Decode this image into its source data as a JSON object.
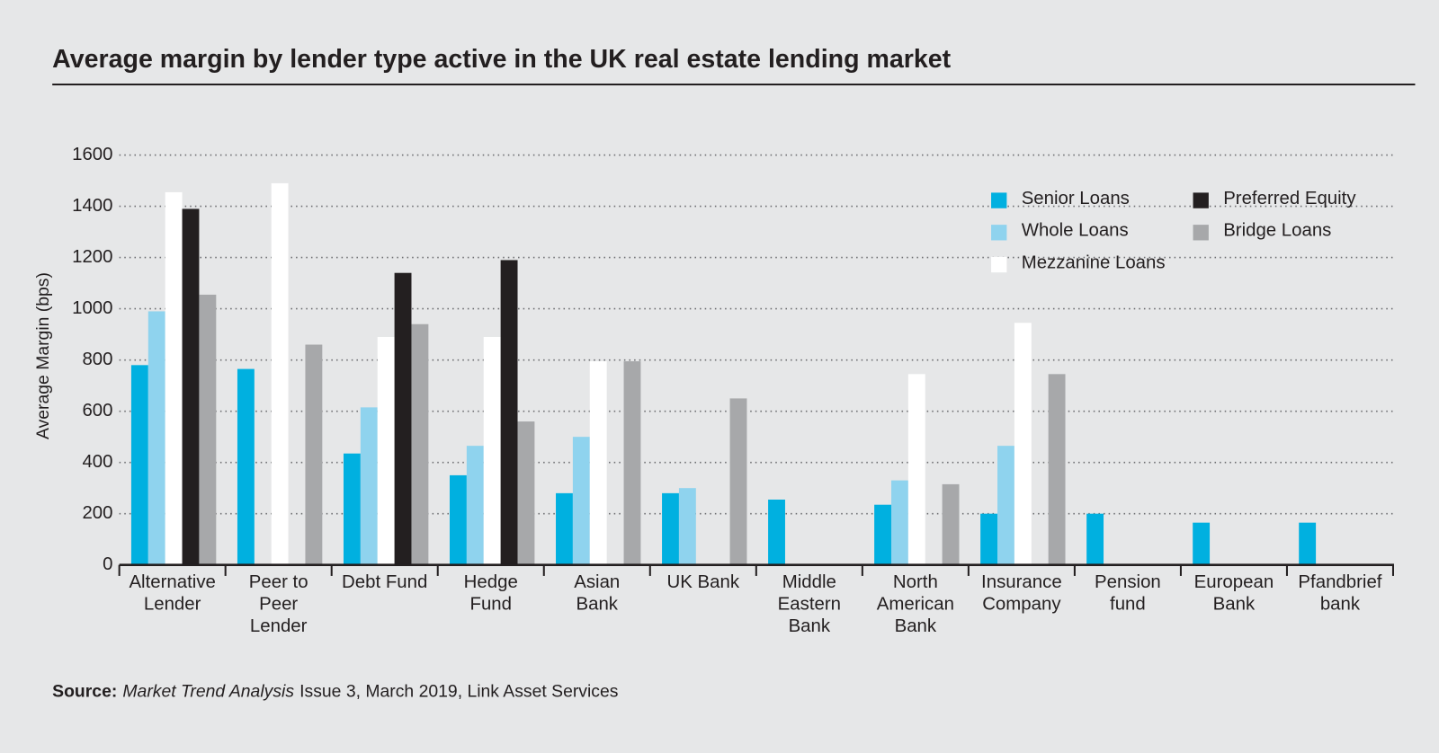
{
  "chart_data": {
    "type": "bar",
    "title": "Average margin by lender type active in the UK real estate lending market",
    "y_label": "Average Margin (bps)",
    "categories": [
      "Alternative\nLender",
      "Peer to\nPeer\nLender",
      "Debt Fund",
      "Hedge\nFund",
      "Asian\nBank",
      "UK Bank",
      "Middle\nEastern\nBank",
      "North\nAmerican\nBank",
      "Insurance\nCompany",
      "Pension\nfund",
      "European\nBank",
      "Pfandbrief\nbank"
    ],
    "series": [
      {
        "name": "Senior Loans",
        "color": "#00b0e0",
        "values": [
          780,
          765,
          435,
          350,
          280,
          280,
          255,
          235,
          200,
          200,
          165,
          165
        ]
      },
      {
        "name": "Whole Loans",
        "color": "#8fd3ee",
        "values": [
          990,
          null,
          615,
          465,
          500,
          300,
          null,
          330,
          465,
          null,
          null,
          null
        ]
      },
      {
        "name": "Mezzanine Loans",
        "color": "#ffffff",
        "values": [
          1455,
          1490,
          890,
          890,
          795,
          null,
          null,
          745,
          945,
          null,
          null,
          null
        ]
      },
      {
        "name": "Preferred Equity",
        "color": "#231f20",
        "values": [
          1390,
          null,
          1140,
          1190,
          null,
          null,
          null,
          null,
          null,
          null,
          null,
          null
        ]
      },
      {
        "name": "Bridge Loans",
        "color": "#a7a8aa",
        "values": [
          1055,
          860,
          940,
          560,
          795,
          650,
          null,
          315,
          745,
          null,
          null,
          null
        ]
      }
    ],
    "ylim": [
      0,
      1600
    ],
    "yticks": [
      0,
      200,
      400,
      600,
      800,
      1000,
      1200,
      1400,
      1600
    ],
    "grid": true,
    "legend": "upper right",
    "source": {
      "label": "Source:",
      "publication": "Market Trend Analysis",
      "details": "Issue 3, March 2019, Link Asset Services"
    }
  }
}
